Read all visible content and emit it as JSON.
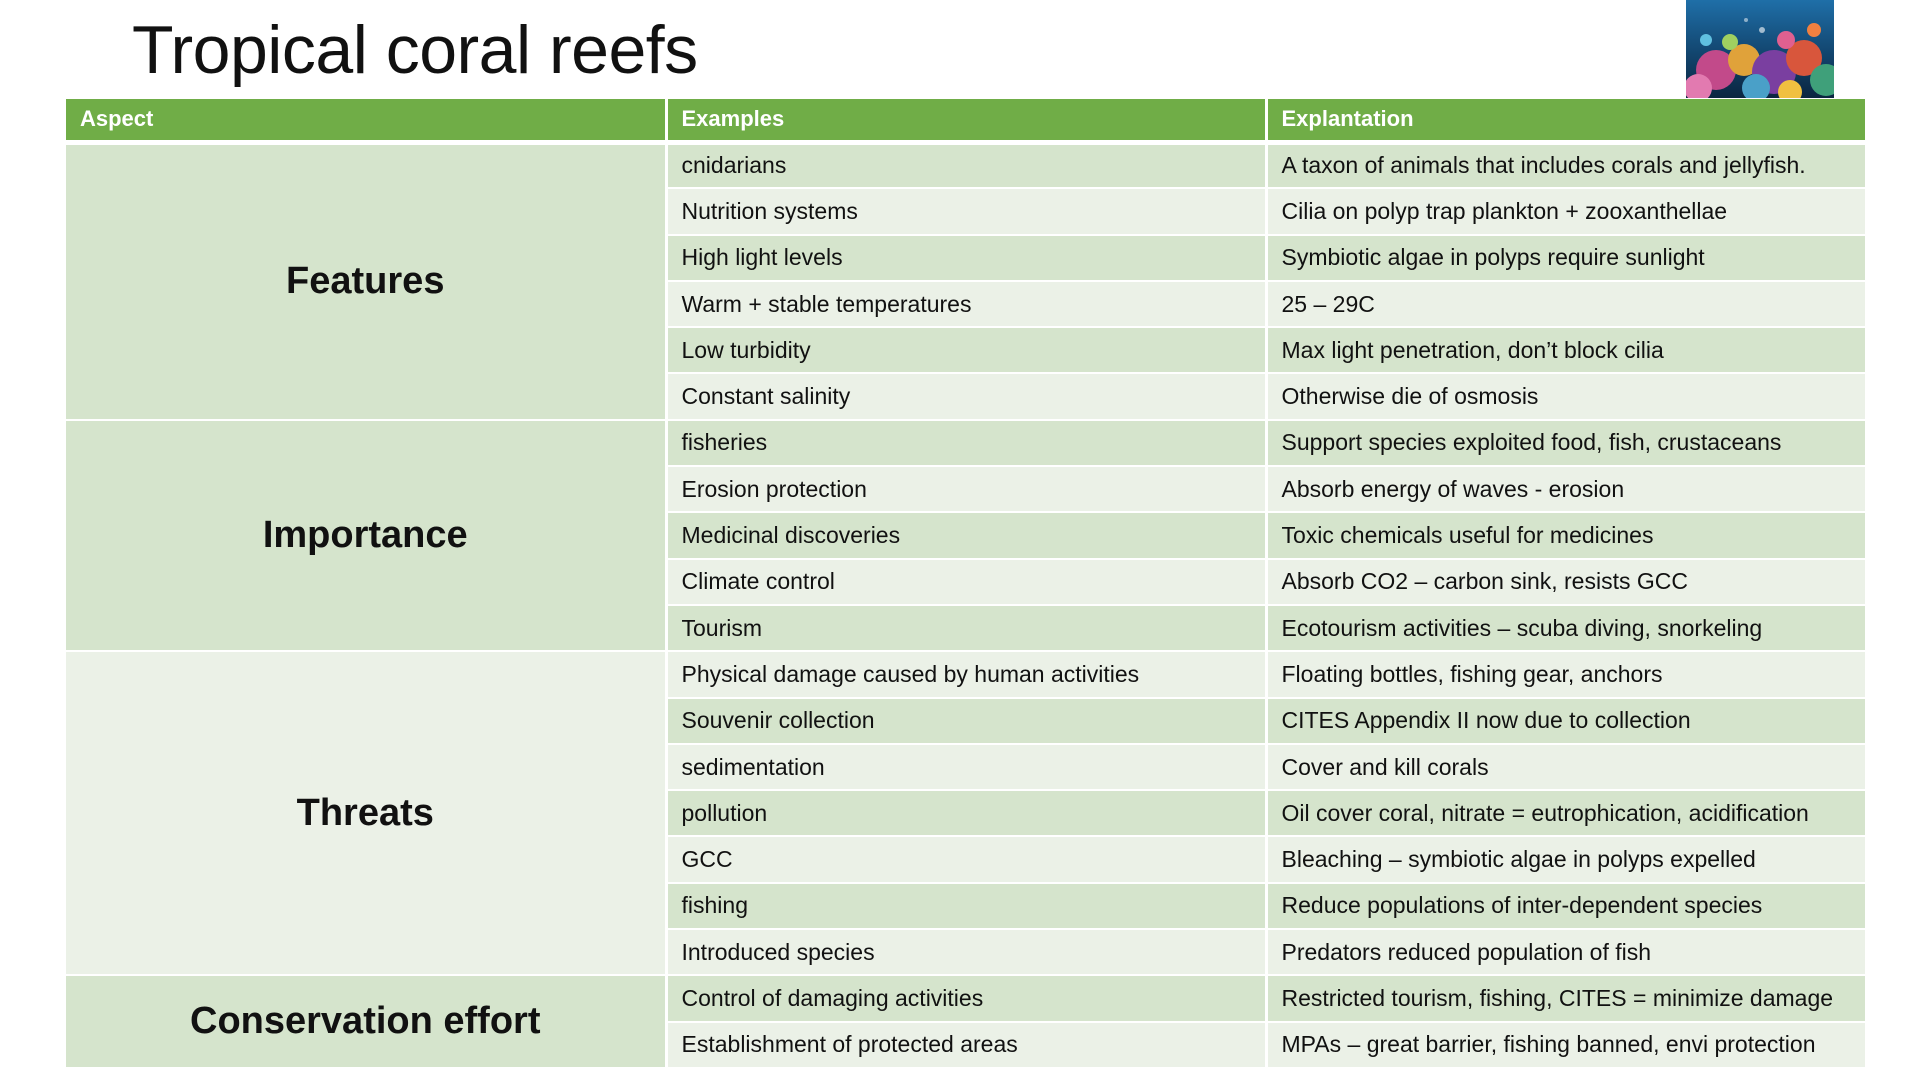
{
  "slide": {
    "title": "Tropical coral reefs",
    "image_subject": "coral reef photo"
  },
  "colors": {
    "header": "#70ad47",
    "band_dark": "#d5e4cc",
    "band_light": "#ebf1e7"
  },
  "table": {
    "headers": [
      "Aspect",
      "Examples",
      "Explantation"
    ],
    "groups": [
      {
        "aspect": "Features",
        "rows": [
          [
            "cnidarians",
            "A taxon of animals that includes corals and jellyfish."
          ],
          [
            "Nutrition systems",
            "Cilia on polyp trap plankton + zooxanthellae"
          ],
          [
            "High light levels",
            "Symbiotic algae in polyps require sunlight"
          ],
          [
            "Warm + stable temperatures",
            "25 – 29C"
          ],
          [
            "Low turbidity",
            "Max light penetration, don’t block cilia"
          ],
          [
            "Constant salinity",
            "Otherwise die of osmosis"
          ]
        ]
      },
      {
        "aspect": "Importance",
        "rows": [
          [
            "fisheries",
            "Support species exploited food, fish, crustaceans"
          ],
          [
            "Erosion protection",
            "Absorb energy of waves - erosion"
          ],
          [
            "Medicinal discoveries",
            "Toxic chemicals useful for medicines"
          ],
          [
            "Climate control",
            "Absorb CO2 – carbon sink, resists GCC"
          ],
          [
            "Tourism",
            "Ecotourism activities – scuba diving, snorkeling"
          ]
        ]
      },
      {
        "aspect": "Threats",
        "rows": [
          [
            "Physical damage caused by human activities",
            "Floating bottles, fishing gear, anchors"
          ],
          [
            "Souvenir collection",
            "CITES Appendix II now due to collection"
          ],
          [
            "sedimentation",
            "Cover and kill corals"
          ],
          [
            "pollution",
            "Oil cover coral, nitrate = eutrophication, acidification"
          ],
          [
            "GCC",
            "Bleaching – symbiotic algae in polyps expelled"
          ],
          [
            "fishing",
            "Reduce populations of inter-dependent species"
          ],
          [
            "Introduced species",
            "Predators reduced population of fish"
          ]
        ]
      },
      {
        "aspect": "Conservation effort",
        "rows": [
          [
            "Control of damaging activities",
            "Restricted tourism, fishing, CITES = minimize damage"
          ],
          [
            "Establishment of protected areas",
            "MPAs – great barrier, fishing banned, envi protection"
          ]
        ]
      }
    ]
  }
}
